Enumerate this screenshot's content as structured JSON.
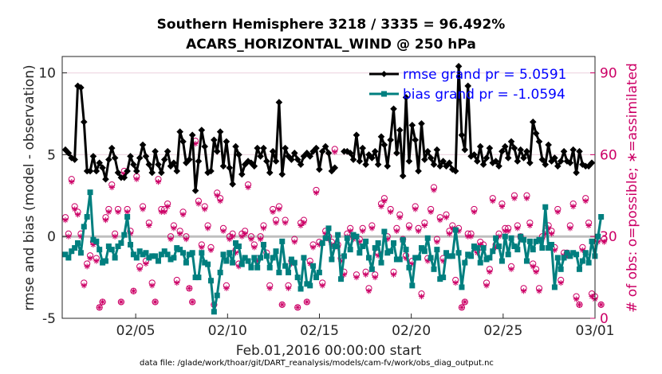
{
  "chart_data": {
    "type": "line",
    "title": "Southern Hemisphere 3218 / 3335 = 96.492%",
    "subtitle": "ACARS_HORIZONTAL_WIND @ 250 hPa",
    "ylabel": "rmse and bias (model - observation)",
    "y2label": "# of obs: o=possible; ∗=assimilated",
    "xlabel": "Feb.01,2016 00:00:00 start",
    "footnote": "data file: /glade/work/thoar/git/DART_reanalysis/models/cam-fv/work/obs_diag_output.nc",
    "x_ticks": [
      "02/05",
      "02/10",
      "02/15",
      "02/20",
      "02/25",
      "03/01"
    ],
    "y_ticks": [
      "-5",
      "0",
      "5",
      "10"
    ],
    "y2_ticks": [
      "0",
      "30",
      "60",
      "90"
    ],
    "ylim": [
      -5,
      11
    ],
    "y2lim": [
      0,
      96
    ],
    "xlim_days": [
      1,
      30
    ],
    "grid": "horizontal",
    "legend_position": "top-right",
    "series": [
      {
        "name": "rmse grand pr = 5.0591",
        "color": "#000000",
        "marker": "diamond",
        "values": [
          5.3,
          5.1,
          4.8,
          4.7,
          9.2,
          9.1,
          7.0,
          4.0,
          4.0,
          4.9,
          4.0,
          4.5,
          4.2,
          3.5,
          4.7,
          5.4,
          4.8,
          3.9,
          3.6,
          3.6,
          4.0,
          4.9,
          4.4,
          4.0,
          4.8,
          5.6,
          4.9,
          4.4,
          3.9,
          5.2,
          4.4,
          3.9,
          4.7,
          5.2,
          4.3,
          4.5,
          4.0,
          6.4,
          5.8,
          4.5,
          4.7,
          6.2,
          2.8,
          4.6,
          6.5,
          5.5,
          3.9,
          4.0,
          5.9,
          5.2,
          6.4,
          4.3,
          5.8,
          4.2,
          3.2,
          5.5,
          5.0,
          3.8,
          4.4,
          4.6,
          4.5,
          4.3,
          5.4,
          4.9,
          5.4,
          4.6,
          3.9,
          5.2,
          4.6,
          8.2,
          3.8,
          5.4,
          4.9,
          4.7,
          5.1,
          4.7,
          4.4,
          4.9,
          5.1,
          4.9,
          5.2,
          5.4,
          4.1,
          5.2,
          5.5,
          5.1,
          4.0,
          4.2,
          null,
          null,
          5.2,
          5.2,
          5.1,
          4.7,
          6.2,
          4.6,
          5.4,
          4.4,
          5.0,
          4.8,
          5.2,
          4.4,
          6.1,
          5.6,
          4.3,
          5.9,
          7.8,
          5.1,
          6.5,
          3.7,
          8.5,
          4.6,
          6.8,
          5.9,
          4.0,
          6.9,
          4.7,
          5.2,
          4.8,
          4.4,
          5.3,
          4.3,
          4.6,
          4.3,
          4.5,
          4.1,
          4.0,
          10.4,
          6.2,
          5.3,
          9.2,
          4.9,
          5.0,
          4.6,
          5.5,
          4.4,
          4.8,
          5.4,
          4.5,
          4.6,
          4.3,
          5.2,
          5.5,
          4.8,
          5.8,
          5.4,
          4.6,
          5.3,
          4.8,
          5.2,
          4.5,
          7.0,
          6.3,
          5.8,
          4.7,
          4.4,
          5.6,
          4.6,
          4.8,
          4.3,
          4.6,
          5.2,
          4.6,
          4.5,
          5.3,
          3.9,
          5.2,
          4.4,
          4.3,
          4.3,
          4.5
        ]
      },
      {
        "name": "bias grand pr = -1.0594",
        "color": "#007f7f",
        "marker": "square",
        "values": [
          -1.1,
          -1.3,
          -0.9,
          -0.7,
          -0.4,
          -1.0,
          0.6,
          1.2,
          2.7,
          -0.2,
          -0.3,
          -0.8,
          -1.6,
          -1.5,
          -0.6,
          -0.8,
          -1.3,
          -0.6,
          -0.4,
          0.1,
          1.2,
          -0.5,
          -1.1,
          -1.3,
          -0.9,
          -1.1,
          -1.0,
          -1.3,
          -1.2,
          -1.2,
          -1.5,
          -1.1,
          -0.9,
          -1.1,
          -1.4,
          -1.3,
          -0.7,
          -0.8,
          -1.0,
          -1.6,
          -1.1,
          -1.0,
          -2.5,
          -2.5,
          -1.0,
          -1.6,
          -1.7,
          -2.7,
          -4.6,
          -3.6,
          -2.2,
          -1.1,
          -1.5,
          -1.0,
          -1.6,
          -0.4,
          -0.6,
          -1.7,
          -1.3,
          -1.5,
          -1.9,
          -1.3,
          -1.9,
          -1.3,
          -0.5,
          -1.2,
          -1.9,
          -1.3,
          -0.9,
          -2.2,
          -0.3,
          -1.8,
          -2.2,
          -1.4,
          -1.6,
          -2.5,
          -3.2,
          -1.3,
          -2.9,
          -3.0,
          -1.8,
          -2.5,
          -2.2,
          -0.4,
          -0.1,
          0.5,
          -1.4,
          -0.6,
          0.1,
          -2.6,
          -1.2,
          -0.1,
          -0.8,
          0.1,
          0.0,
          -1.0,
          -0.6,
          -0.3,
          -1.3,
          -2.0,
          -0.7,
          -0.4,
          -1.6,
          0.3,
          -1.0,
          -0.9,
          -0.4,
          -1.4,
          -1.4,
          -0.2,
          -0.8,
          -1.9,
          -3.0,
          -1.3,
          -1.3,
          -0.7,
          -0.9,
          -0.1,
          -1.3,
          -2.0,
          -0.8,
          -2.6,
          -2.5,
          -1.0,
          -1.2,
          -1.2,
          0.4,
          -1.0,
          -3.1,
          -1.6,
          -1.1,
          -1.2,
          -0.6,
          -0.7,
          -1.6,
          -0.7,
          -1.4,
          -1.3,
          -0.9,
          -0.1,
          -0.6,
          -1.5,
          0.0,
          -1.1,
          -0.1,
          -0.6,
          -0.8,
          0.0,
          -0.2,
          -1.5,
          -0.3,
          -0.8,
          -0.3,
          -0.2,
          -0.7,
          1.8,
          -0.7,
          -0.5,
          -3.1,
          -1.3,
          -2.0,
          -1.3,
          -1.0,
          -1.2,
          -1.0,
          -1.1,
          -2.0,
          -1.5,
          -1.0,
          -1.6,
          -0.3,
          -1.2,
          0.0,
          1.2
        ]
      },
      {
        "name": "possible",
        "color": "#cc0066",
        "marker": "circle",
        "values": [
          37,
          31,
          51,
          41,
          39,
          31,
          13,
          20,
          23,
          28,
          22,
          4,
          6,
          37,
          40,
          49,
          31,
          40,
          6,
          54,
          40,
          32,
          10,
          52,
          19,
          41,
          21,
          35,
          13,
          6,
          51,
          40,
          40,
          42,
          30,
          34,
          14,
          32,
          39,
          30,
          11,
          6,
          65,
          43,
          27,
          41,
          34,
          26,
          5,
          46,
          44,
          33,
          12,
          30,
          31,
          25,
          20,
          31,
          32,
          49,
          30,
          27,
          22,
          30,
          34,
          24,
          12,
          40,
          36,
          41,
          5,
          36,
          12,
          21,
          29,
          4,
          35,
          36,
          6,
          21,
          27,
          47,
          28,
          13,
          32,
          30,
          28,
          62,
          27,
          22,
          17,
          31,
          33,
          30,
          16,
          29,
          33,
          17,
          11,
          34,
          16,
          24,
          42,
          44,
          30,
          40,
          17,
          33,
          38,
          29,
          23,
          34,
          21,
          41,
          33,
          9,
          35,
          22,
          40,
          48,
          29,
          37,
          22,
          38,
          32,
          34,
          14,
          33,
          4,
          6,
          31,
          31,
          40,
          25,
          28,
          27,
          13,
          18,
          44,
          27,
          31,
          42,
          33,
          33,
          19,
          45,
          34,
          30,
          11,
          45,
          35,
          20,
          18,
          11,
          30,
          32,
          34,
          32,
          26,
          40,
          14,
          24,
          24,
          34,
          42,
          8,
          5,
          26,
          44,
          35,
          9,
          8,
          29,
          5,
          29
        ]
      },
      {
        "name": "assimilated",
        "color": "#cc0066",
        "marker": "asterisk",
        "values": [
          36,
          30,
          50,
          40,
          38,
          30,
          12,
          19,
          22,
          27,
          21,
          4,
          6,
          36,
          39,
          48,
          30,
          39,
          6,
          53,
          39,
          31,
          10,
          51,
          18,
          40,
          20,
          34,
          12,
          6,
          50,
          39,
          39,
          41,
          29,
          33,
          13,
          31,
          38,
          29,
          11,
          6,
          64,
          42,
          26,
          40,
          33,
          25,
          5,
          45,
          43,
          32,
          11,
          29,
          30,
          24,
          19,
          30,
          31,
          48,
          29,
          26,
          21,
          29,
          33,
          23,
          11,
          39,
          35,
          40,
          5,
          35,
          11,
          20,
          28,
          4,
          34,
          35,
          6,
          20,
          26,
          46,
          27,
          12,
          31,
          29,
          27,
          61,
          26,
          21,
          16,
          30,
          32,
          29,
          15,
          28,
          32,
          16,
          10,
          33,
          15,
          23,
          41,
          43,
          29,
          39,
          16,
          32,
          37,
          28,
          22,
          33,
          20,
          40,
          32,
          8,
          34,
          21,
          39,
          47,
          28,
          36,
          21,
          37,
          31,
          33,
          13,
          32,
          4,
          6,
          30,
          30,
          39,
          24,
          27,
          26,
          12,
          17,
          43,
          26,
          30,
          41,
          32,
          32,
          18,
          44,
          33,
          29,
          10,
          44,
          34,
          19,
          17,
          10,
          29,
          31,
          33,
          31,
          25,
          39,
          13,
          23,
          23,
          33,
          41,
          7,
          5,
          25,
          43,
          34,
          8,
          7,
          28,
          5,
          28
        ]
      }
    ]
  }
}
